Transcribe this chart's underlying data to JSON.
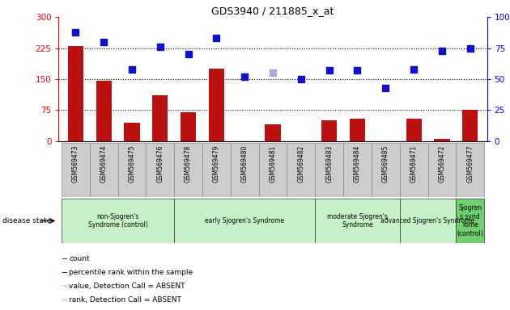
{
  "title": "GDS3940 / 211885_x_at",
  "samples": [
    "GSM569473",
    "GSM569474",
    "GSM569475",
    "GSM569476",
    "GSM569478",
    "GSM569479",
    "GSM569480",
    "GSM569481",
    "GSM569482",
    "GSM569483",
    "GSM569484",
    "GSM569485",
    "GSM569471",
    "GSM569472",
    "GSM569477"
  ],
  "count_values": [
    230,
    145,
    45,
    110,
    70,
    175,
    0,
    40,
    0,
    50,
    55,
    0,
    55,
    5,
    75
  ],
  "count_absent": [
    false,
    false,
    false,
    false,
    false,
    false,
    true,
    false,
    true,
    false,
    false,
    true,
    false,
    false,
    false
  ],
  "rank_values": [
    88,
    80,
    58,
    76,
    70,
    83,
    52,
    55,
    50,
    57,
    57,
    43,
    58,
    73,
    75
  ],
  "rank_absent": [
    false,
    false,
    false,
    false,
    false,
    false,
    false,
    true,
    false,
    false,
    false,
    false,
    false,
    false,
    false
  ],
  "ylim_left": [
    0,
    300
  ],
  "ylim_right": [
    0,
    100
  ],
  "yticks_left": [
    0,
    75,
    150,
    225,
    300
  ],
  "ytick_labels_left": [
    "0",
    "75",
    "150",
    "225",
    "300"
  ],
  "yticks_right": [
    0,
    25,
    50,
    75,
    100
  ],
  "ytick_labels_right": [
    "0",
    "25",
    "50",
    "75",
    "100%"
  ],
  "disease_groups": [
    {
      "label": "non-Sjogren's\nSyndrome (control)",
      "start": 0,
      "end": 4,
      "color": "#c8f0c8"
    },
    {
      "label": "early Sjogren's Syndrome",
      "start": 4,
      "end": 9,
      "color": "#c8f0c8"
    },
    {
      "label": "moderate Sjogren's\nSyndrome",
      "start": 9,
      "end": 12,
      "color": "#c8f0c8"
    },
    {
      "label": "advanced Sjogren's Syndrome",
      "start": 12,
      "end": 14,
      "color": "#c8f0c8"
    },
    {
      "label": "Sjogren\ns synd\nrome\n(control)",
      "start": 14,
      "end": 15,
      "color": "#70d070"
    }
  ],
  "bar_color_present": "#bb1111",
  "bar_color_absent": "#f0a0a8",
  "dot_color_present": "#1111cc",
  "dot_color_absent": "#aaaadd",
  "bg_xticklabel": "#cccccc",
  "bar_width": 0.55,
  "dot_size": 40
}
